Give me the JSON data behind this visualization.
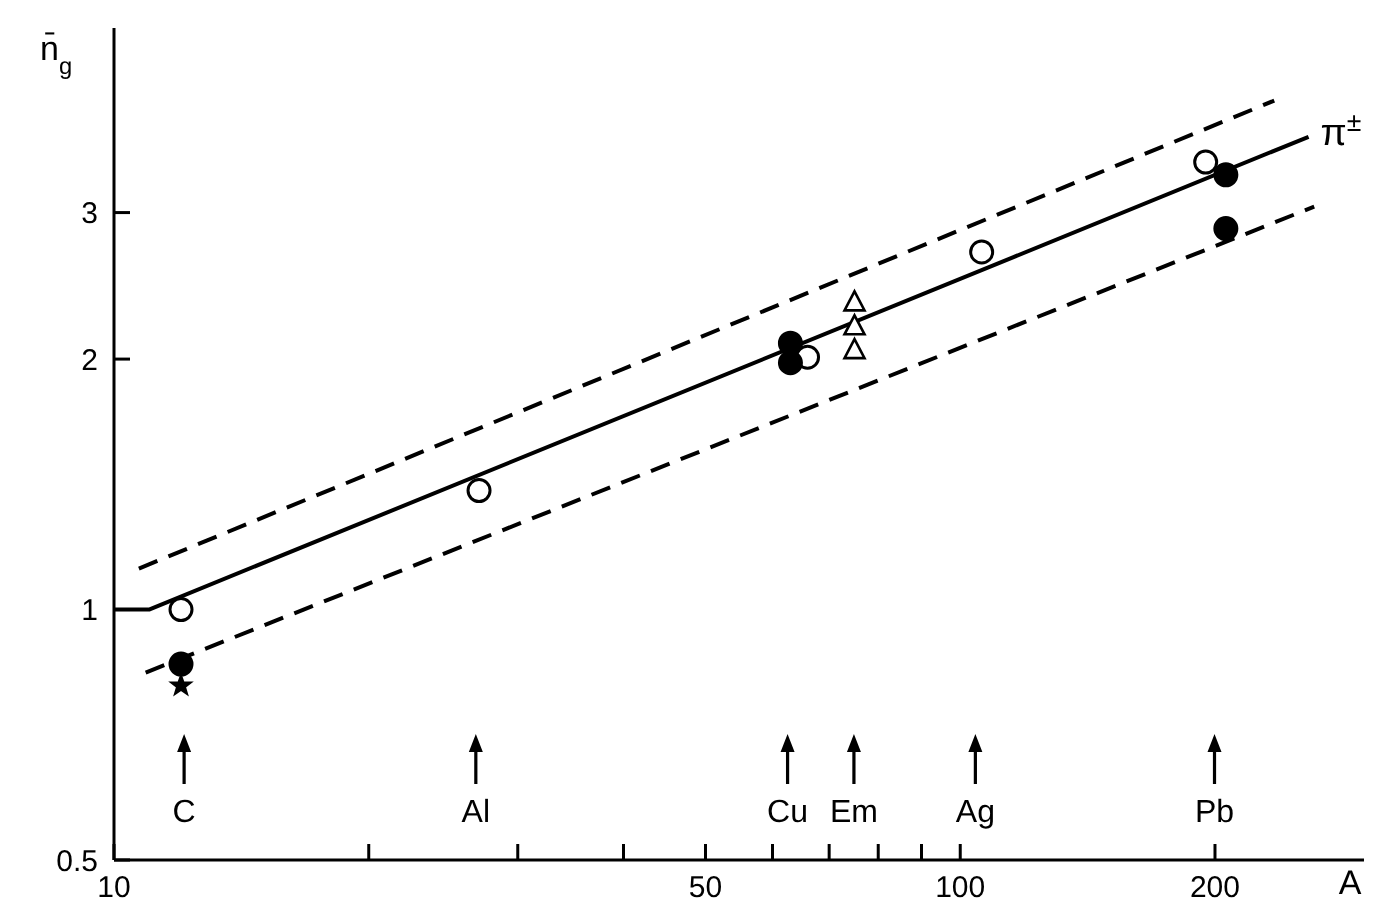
{
  "chart_data": {
    "type": "scatter",
    "xlabel": "A",
    "ylabel": "n̄$_{g}$",
    "log": "xy",
    "grid": false,
    "legend": false,
    "xlim": [
      10,
      300
    ],
    "ylim": [
      0.5,
      5
    ],
    "xticks": [
      10,
      {
        "value": 20,
        "label": null
      },
      {
        "value": 30,
        "label": null
      },
      {
        "value": 40,
        "label": null
      },
      50,
      {
        "value": 60,
        "label": null
      },
      {
        "value": 70,
        "label": null
      },
      {
        "value": 80,
        "label": null
      },
      {
        "value": 90,
        "label": null
      },
      100,
      200
    ],
    "yticks": [
      0.5,
      1,
      2,
      3
    ],
    "series": [
      {
        "type": "line",
        "name": "π$^{±}$",
        "color": "#000000",
        "line_style": "solid",
        "marker": "none",
        "x": [
          10,
          11,
          258
        ],
        "values": [
          1,
          1,
          3.7
        ]
      },
      {
        "type": "line",
        "color": "#000000",
        "line_style": "dashed",
        "marker": "none",
        "x": [
          10.7,
          235
        ],
        "values": [
          1.12,
          4.09
        ]
      },
      {
        "type": "line",
        "color": "#000000",
        "line_style": "dashed",
        "marker": "none",
        "x": [
          10.9,
          262
        ],
        "values": [
          0.84,
          3.05
        ]
      },
      {
        "color": "#ffffff",
        "marker": "circle",
        "x": [
          12,
          27,
          66,
          106,
          195
        ],
        "values": [
          1.0,
          1.39,
          2.01,
          2.69,
          3.45
        ]
      },
      {
        "color": "#000000",
        "marker": "circle",
        "x": [
          12,
          63,
          63,
          206,
          206
        ],
        "values": [
          0.86,
          2.09,
          1.98,
          3.33,
          2.87
        ]
      },
      {
        "color": "#000000",
        "marker": "star",
        "x": [
          12
        ],
        "values": [
          0.81
        ]
      },
      {
        "color": "#ffffff",
        "marker": "triangle",
        "x": [
          75,
          75,
          75
        ],
        "values": [
          2.34,
          2.19,
          2.05
        ]
      }
    ],
    "annotations": [
      "C",
      "Al",
      "Cu",
      "Em",
      "Ag",
      "Pb"
    ]
  }
}
